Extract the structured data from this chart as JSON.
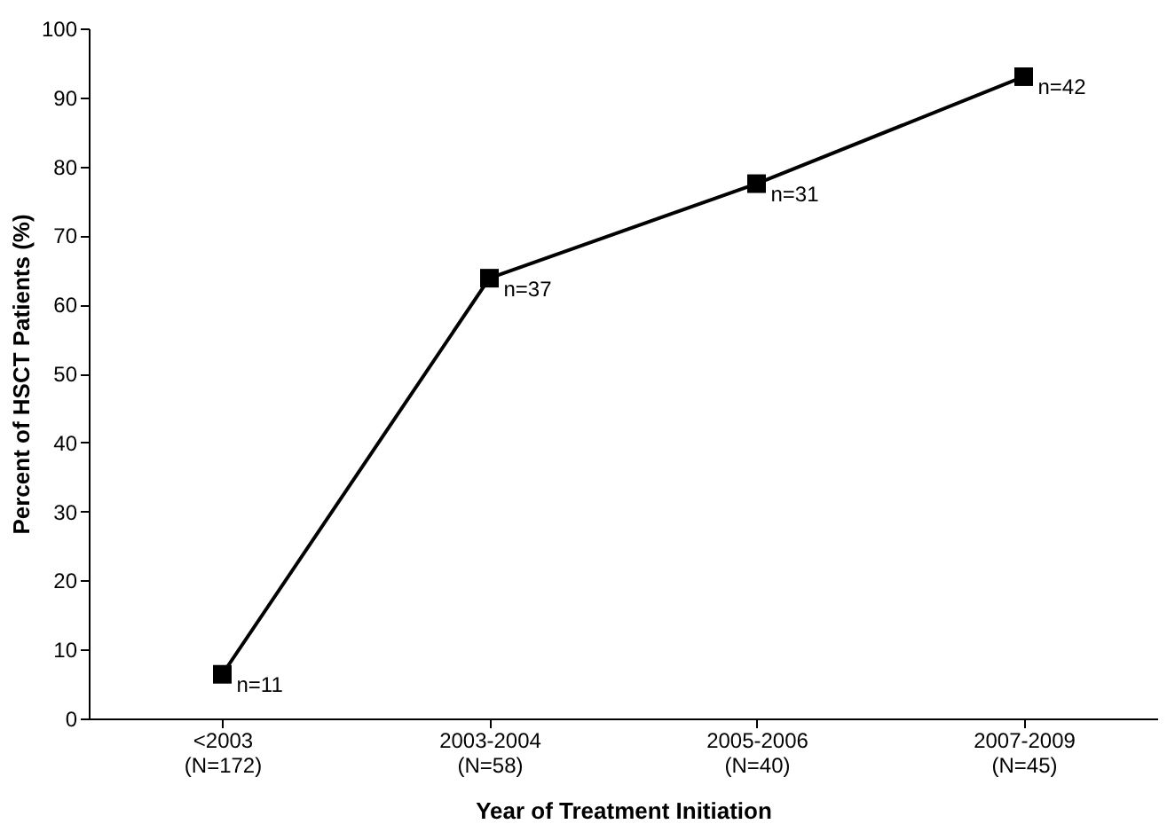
{
  "chart_data": {
    "type": "line",
    "categories": [
      "<2003\n(N=172)",
      "2003-2004\n(N=58)",
      "2005-2006\n(N=40)",
      "2007-2009\n(N=45)"
    ],
    "series": [
      {
        "color": "#000000",
        "values": [
          6.4,
          63.8,
          77.5,
          93.0
        ]
      }
    ],
    "xlabel": "Year of Treatment Initiation",
    "ylabel": "Percent of HSCT Patients (%)",
    "ylim": [
      0,
      100
    ],
    "yticks": [
      0,
      10,
      20,
      30,
      40,
      50,
      60,
      70,
      80,
      90,
      100
    ],
    "grid": false,
    "marker": "square",
    "line_style": "solid",
    "annotations": [
      {
        "text": "n=11",
        "x": "<2003\n(N=172)",
        "y": 6.4
      },
      {
        "text": "n=37",
        "x": "2003-2004\n(N=58)",
        "y": 63.8
      },
      {
        "text": "n=31",
        "x": "2005-2006\n(N=40)",
        "y": 77.5
      },
      {
        "text": "n=42",
        "x": "2007-2009\n(N=45)",
        "y": 93.0
      }
    ]
  }
}
